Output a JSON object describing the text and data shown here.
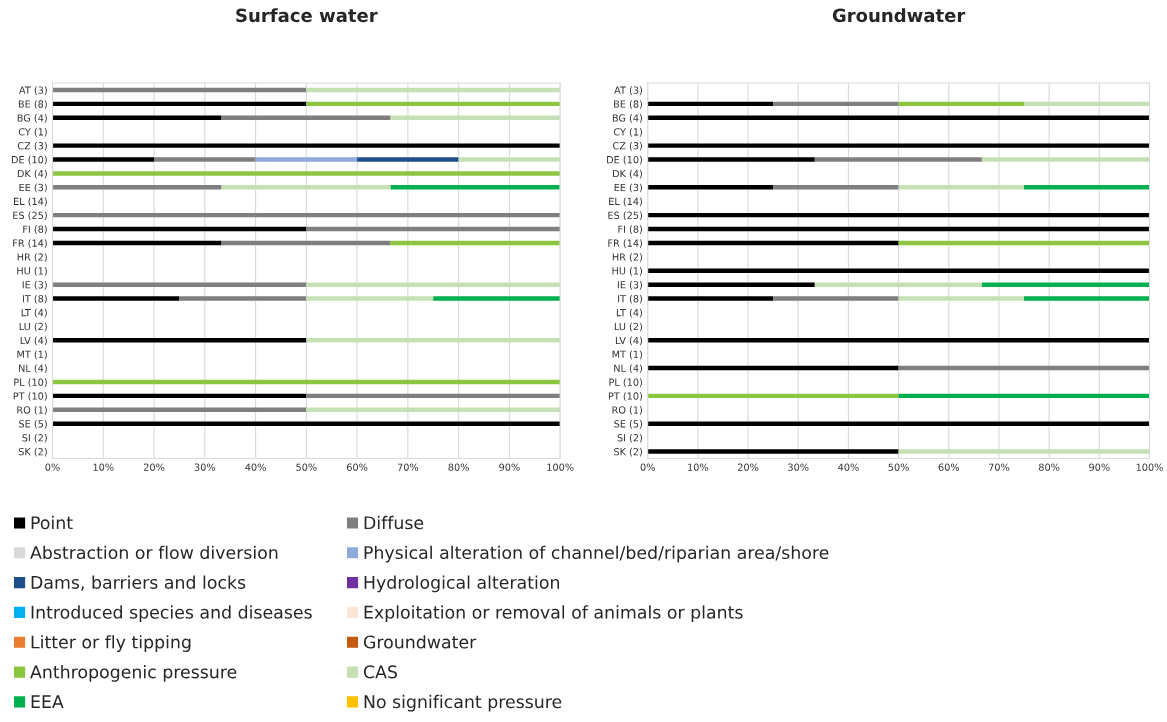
{
  "chart_data": [
    {
      "type": "bar",
      "orientation": "horizontal",
      "stacked": true,
      "title": "Surface water",
      "legend": "bottom",
      "grid": "x",
      "categories": [
        "AT (3)",
        "BE (8)",
        "BG (4)",
        "CY (1)",
        "CZ (3)",
        "DE (10)",
        "DK (4)",
        "EE (3)",
        "EL (14)",
        "ES (25)",
        "FI (8)",
        "FR (14)",
        "HR (2)",
        "HU (1)",
        "IE (3)",
        "IT (8)",
        "LT (4)",
        "LU (2)",
        "LV (4)",
        "MT (1)",
        "NL (4)",
        "PL (10)",
        "PT (10)",
        "RO (1)",
        "SE (5)",
        "SI (2)",
        "SK (2)"
      ],
      "xlim": [
        0,
        100
      ],
      "xticks": [
        {
          "value": 0,
          "label": "0%"
        },
        {
          "value": 10,
          "label": "10%"
        },
        {
          "value": 20,
          "label": "20%"
        },
        {
          "value": 30,
          "label": "30%"
        },
        {
          "value": 40,
          "label": "40%"
        },
        {
          "value": 50,
          "label": "50%"
        },
        {
          "value": 60,
          "label": "60%"
        },
        {
          "value": 70,
          "label": "70%"
        },
        {
          "value": 80,
          "label": "80%"
        },
        {
          "value": 90,
          "label": "90%"
        },
        {
          "value": 100,
          "label": "100%"
        }
      ],
      "series": [
        {
          "name": "Point",
          "color": "#000000",
          "values": [
            null,
            50,
            33.3,
            null,
            100,
            20,
            null,
            null,
            null,
            null,
            50,
            33.3,
            null,
            null,
            null,
            25,
            null,
            null,
            50,
            null,
            null,
            null,
            50,
            null,
            100,
            null,
            null
          ]
        },
        {
          "name": "Diffuse",
          "color": "#7f7f7f",
          "values": [
            50,
            null,
            33.3,
            null,
            null,
            20,
            null,
            33.3,
            null,
            100,
            50,
            33.3,
            null,
            null,
            50,
            25,
            null,
            null,
            null,
            null,
            null,
            null,
            50,
            50,
            null,
            null,
            null
          ]
        },
        {
          "name": "Abstraction or flow diversion",
          "color": "#d9d9d9",
          "values": [
            null,
            null,
            null,
            null,
            null,
            null,
            null,
            null,
            null,
            null,
            null,
            null,
            null,
            null,
            null,
            null,
            null,
            null,
            null,
            null,
            null,
            null,
            null,
            null,
            null,
            null,
            null
          ]
        },
        {
          "name": "Physical alteration of channel/bed/riparian area/shore",
          "color": "#8eaadb",
          "values": [
            null,
            null,
            null,
            null,
            null,
            20,
            null,
            null,
            null,
            null,
            null,
            null,
            null,
            null,
            null,
            null,
            null,
            null,
            null,
            null,
            null,
            null,
            null,
            null,
            null,
            null,
            null
          ]
        },
        {
          "name": "Dams, barriers and locks",
          "color": "#1f4e8c",
          "values": [
            null,
            null,
            null,
            null,
            null,
            20,
            null,
            null,
            null,
            null,
            null,
            null,
            null,
            null,
            null,
            null,
            null,
            null,
            null,
            null,
            null,
            null,
            null,
            null,
            null,
            null,
            null
          ]
        },
        {
          "name": "Hydrological alteration",
          "color": "#7030a0",
          "values": [
            null,
            null,
            null,
            null,
            null,
            null,
            null,
            null,
            null,
            null,
            null,
            null,
            null,
            null,
            null,
            null,
            null,
            null,
            null,
            null,
            null,
            null,
            null,
            null,
            null,
            null,
            null
          ]
        },
        {
          "name": "Introduced species and diseases",
          "color": "#00b0f0",
          "values": [
            null,
            null,
            null,
            null,
            null,
            null,
            null,
            null,
            null,
            null,
            null,
            null,
            null,
            null,
            null,
            null,
            null,
            null,
            null,
            null,
            null,
            null,
            null,
            null,
            null,
            null,
            null
          ]
        },
        {
          "name": "Exploitation or removal of animals or plants",
          "color": "#fbe5d6",
          "values": [
            null,
            null,
            null,
            null,
            null,
            null,
            null,
            null,
            null,
            null,
            null,
            null,
            null,
            null,
            null,
            null,
            null,
            null,
            null,
            null,
            null,
            null,
            null,
            null,
            null,
            null,
            null
          ]
        },
        {
          "name": "Litter or fly tipping",
          "color": "#ed7d31",
          "values": [
            null,
            null,
            null,
            null,
            null,
            null,
            null,
            null,
            null,
            null,
            null,
            null,
            null,
            null,
            null,
            null,
            null,
            null,
            null,
            null,
            null,
            null,
            null,
            null,
            null,
            null,
            null
          ]
        },
        {
          "name": "Groundwater",
          "color": "#c55a11",
          "values": [
            null,
            null,
            null,
            null,
            null,
            null,
            null,
            null,
            null,
            null,
            null,
            null,
            null,
            null,
            null,
            null,
            null,
            null,
            null,
            null,
            null,
            null,
            null,
            null,
            null,
            null,
            null
          ]
        },
        {
          "name": "Anthropogenic pressure",
          "color": "#8cc63f",
          "values": [
            null,
            50,
            null,
            null,
            null,
            null,
            100,
            null,
            null,
            null,
            null,
            33.3,
            null,
            null,
            null,
            null,
            null,
            null,
            null,
            null,
            null,
            100,
            null,
            null,
            null,
            null,
            null
          ]
        },
        {
          "name": "CAS",
          "color": "#c5e0b4",
          "values": [
            50,
            null,
            33.3,
            null,
            null,
            20,
            null,
            33.3,
            null,
            null,
            null,
            null,
            null,
            null,
            50,
            25,
            null,
            null,
            50,
            null,
            null,
            null,
            null,
            50,
            null,
            null,
            null
          ]
        },
        {
          "name": "EEA",
          "color": "#00b050",
          "values": [
            null,
            null,
            null,
            null,
            null,
            null,
            null,
            33.3,
            null,
            null,
            null,
            null,
            null,
            null,
            null,
            25,
            null,
            null,
            null,
            null,
            null,
            null,
            null,
            null,
            null,
            null,
            null
          ]
        },
        {
          "name": "No significant pressure",
          "color": "#ffc000",
          "values": [
            null,
            null,
            null,
            null,
            null,
            null,
            null,
            null,
            null,
            null,
            null,
            null,
            null,
            null,
            null,
            null,
            null,
            null,
            null,
            null,
            null,
            null,
            null,
            null,
            null,
            null,
            null
          ]
        }
      ]
    },
    {
      "type": "bar",
      "orientation": "horizontal",
      "stacked": true,
      "title": "Groundwater",
      "grid": "x",
      "categories": [
        "AT (3)",
        "BE (8)",
        "BG (4)",
        "CY (1)",
        "CZ (3)",
        "DE (10)",
        "DK (4)",
        "EE (3)",
        "EL (14)",
        "ES (25)",
        "FI (8)",
        "FR (14)",
        "HR (2)",
        "HU (1)",
        "IE (3)",
        "IT (8)",
        "LT (4)",
        "LU (2)",
        "LV (4)",
        "MT (1)",
        "NL (4)",
        "PL (10)",
        "PT (10)",
        "RO (1)",
        "SE (5)",
        "SI (2)",
        "SK (2)"
      ],
      "xlim": [
        0,
        100
      ],
      "xticks": [
        {
          "value": 0,
          "label": "0%"
        },
        {
          "value": 10,
          "label": "10%"
        },
        {
          "value": 20,
          "label": "20%"
        },
        {
          "value": 30,
          "label": "30%"
        },
        {
          "value": 40,
          "label": "40%"
        },
        {
          "value": 50,
          "label": "50%"
        },
        {
          "value": 60,
          "label": "60%"
        },
        {
          "value": 70,
          "label": "70%"
        },
        {
          "value": 80,
          "label": "80%"
        },
        {
          "value": 90,
          "label": "90%"
        },
        {
          "value": 100,
          "label": "100%"
        }
      ],
      "series": [
        {
          "color": "#000000",
          "values": [
            null,
            25,
            100,
            null,
            100,
            33.3,
            null,
            25,
            null,
            100,
            100,
            50,
            null,
            100,
            33.3,
            25,
            null,
            null,
            100,
            null,
            50,
            null,
            null,
            null,
            100,
            null,
            50
          ]
        },
        {
          "color": "#7f7f7f",
          "values": [
            null,
            25,
            null,
            null,
            null,
            33.3,
            null,
            25,
            null,
            null,
            null,
            null,
            null,
            null,
            null,
            25,
            null,
            null,
            null,
            null,
            50,
            null,
            null,
            null,
            null,
            null,
            null
          ]
        },
        {
          "color": "#8cc63f",
          "values": [
            null,
            25,
            null,
            null,
            null,
            null,
            null,
            null,
            null,
            null,
            null,
            50,
            null,
            null,
            null,
            null,
            null,
            null,
            null,
            null,
            null,
            null,
            50,
            null,
            null,
            null,
            null
          ]
        },
        {
          "color": "#c5e0b4",
          "values": [
            null,
            25,
            null,
            null,
            null,
            33.3,
            null,
            25,
            null,
            null,
            null,
            null,
            null,
            null,
            33.3,
            25,
            null,
            null,
            null,
            null,
            null,
            null,
            null,
            null,
            null,
            null,
            50
          ]
        },
        {
          "color": "#00b050",
          "values": [
            null,
            null,
            null,
            null,
            null,
            null,
            null,
            25,
            null,
            null,
            null,
            null,
            null,
            null,
            33.3,
            25,
            null,
            null,
            null,
            null,
            null,
            null,
            50,
            null,
            null,
            null,
            null
          ]
        }
      ]
    }
  ]
}
